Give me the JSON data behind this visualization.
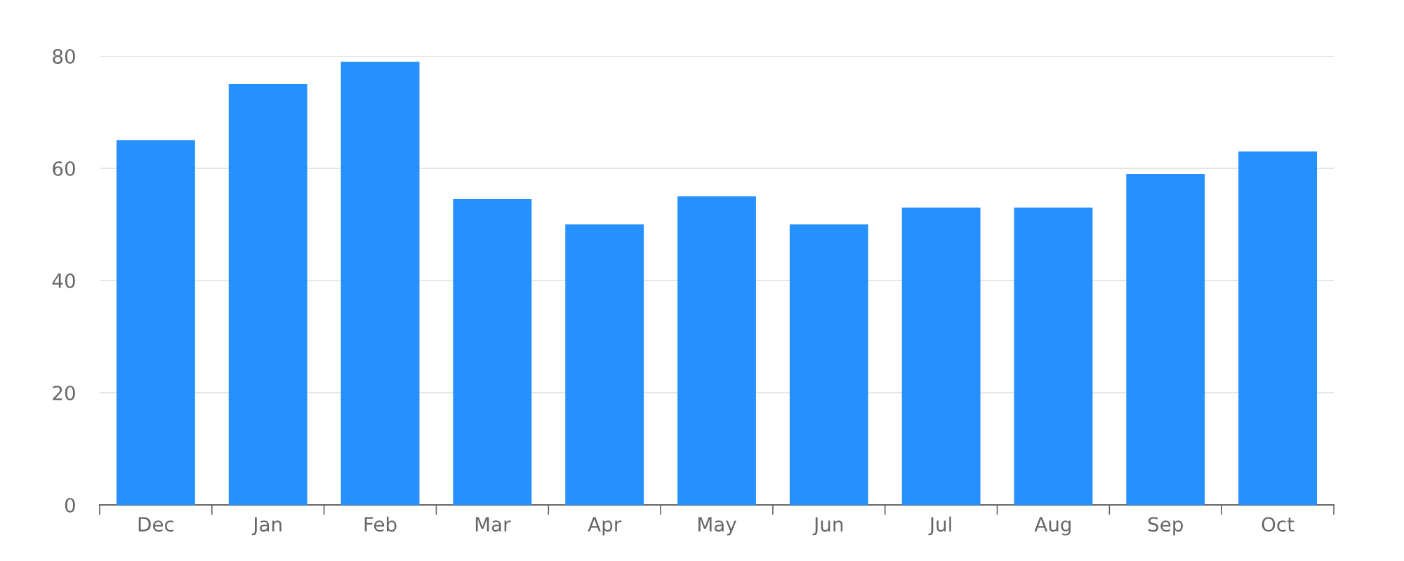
{
  "chart_data": {
    "type": "bar",
    "categories": [
      "Dec",
      "Jan",
      "Feb",
      "Mar",
      "Apr",
      "May",
      "Jun",
      "Jul",
      "Aug",
      "Sep",
      "Oct"
    ],
    "values": [
      65,
      75,
      79,
      54.5,
      50,
      55,
      50,
      53,
      53,
      59,
      63
    ],
    "color": "#2690fe",
    "ylim": [
      0,
      80
    ],
    "yticks": [
      0,
      20,
      40,
      60,
      80
    ],
    "grid": "y"
  }
}
